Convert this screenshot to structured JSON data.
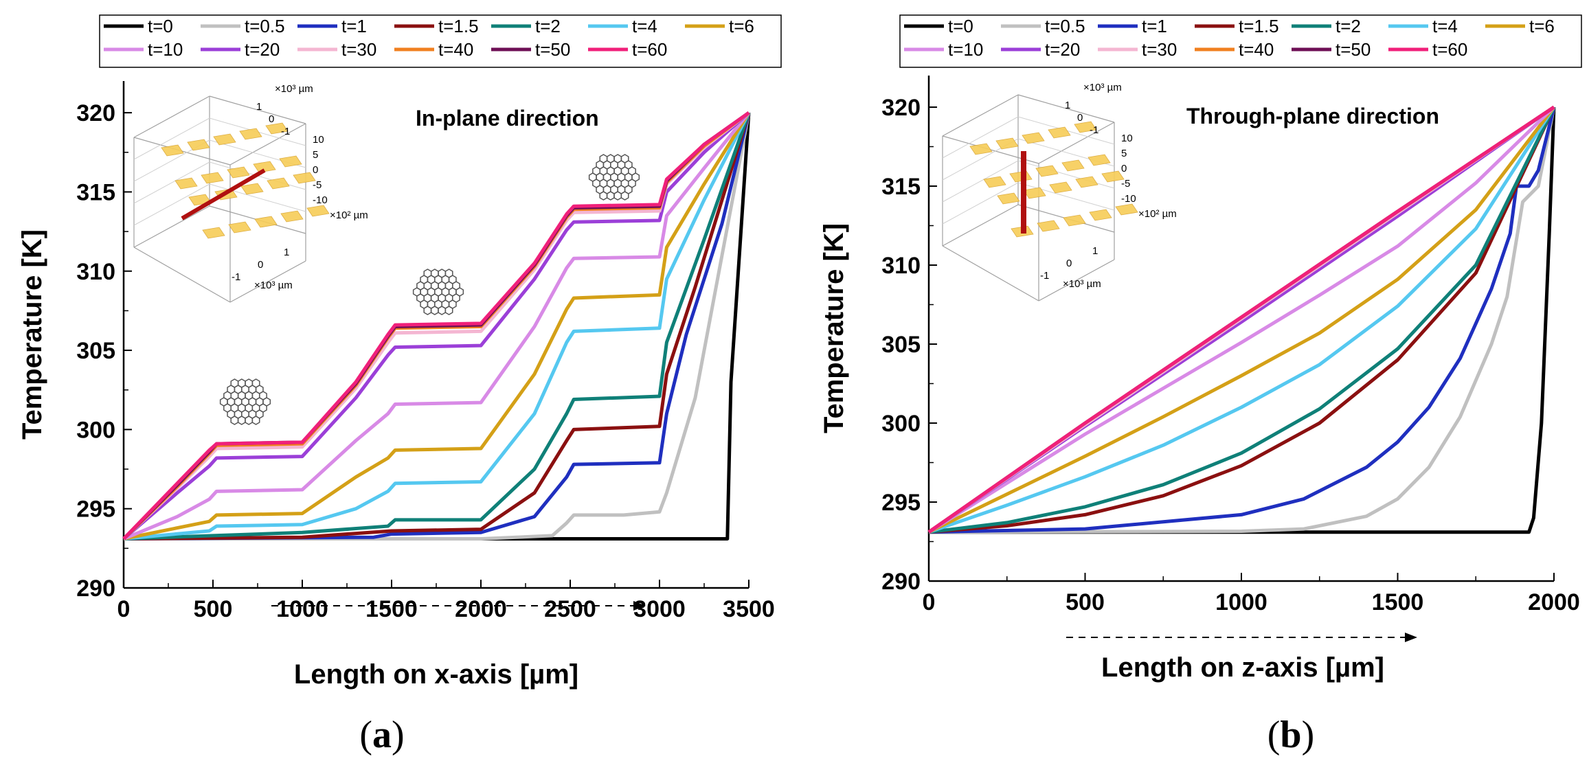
{
  "figure": {
    "captions": [
      {
        "open": "(",
        "letter": "a",
        "close": ")"
      },
      {
        "open": "(",
        "letter": "b",
        "close": ")"
      }
    ]
  },
  "chart_data": [
    {
      "type": "line",
      "panel": "a",
      "title": "In-plane direction",
      "xlabel": "Length on x-axis [µm]",
      "ylabel": "Temperature [K]",
      "xlim": [
        0,
        3500
      ],
      "ylim": [
        290,
        322
      ],
      "xticks": [
        0,
        500,
        1000,
        1500,
        2000,
        2500,
        3000,
        3500
      ],
      "yticks": [
        290,
        295,
        300,
        305,
        310,
        315,
        320
      ],
      "legend_position": "top",
      "inset": {
        "label_top": "×10³ µm",
        "label_z": "×10² µm",
        "label_bottom": "×10³ µm",
        "ticks_top": [
          "1",
          "0",
          "-1"
        ],
        "ticks_z": [
          "10",
          "5",
          "0",
          "-5",
          "-10"
        ],
        "ticks_bottom": [
          "1",
          "0",
          "-1"
        ],
        "line": "horizontal"
      },
      "series": [
        {
          "name": "t=0",
          "color": "#000000",
          "x": [
            0,
            3380,
            3400,
            3500
          ],
          "y": [
            293.1,
            293.1,
            303,
            320
          ]
        },
        {
          "name": "t=0.5",
          "color": "#c0c0c0",
          "x": [
            0,
            2000,
            2400,
            2480,
            2520,
            2800,
            3000,
            3040,
            3200,
            3500
          ],
          "y": [
            293.1,
            293.1,
            293.3,
            294.1,
            294.6,
            294.6,
            294.8,
            296,
            302,
            320
          ]
        },
        {
          "name": "t=1",
          "color": "#1f2fbf",
          "x": [
            0,
            1400,
            1500,
            2000,
            2300,
            2480,
            2520,
            3000,
            3040,
            3150,
            3350,
            3500
          ],
          "y": [
            293.1,
            293.2,
            293.4,
            293.5,
            294.5,
            297,
            297.8,
            297.9,
            301,
            306,
            313,
            320
          ]
        },
        {
          "name": "t=1.5",
          "color": "#8b1010",
          "x": [
            0,
            1000,
            1500,
            2000,
            2300,
            2480,
            2520,
            3000,
            3040,
            3200,
            3500
          ],
          "y": [
            293.1,
            293.2,
            293.6,
            293.7,
            296,
            299.3,
            300,
            300.2,
            303.5,
            309,
            320
          ]
        },
        {
          "name": "t=2",
          "color": "#0f8078",
          "x": [
            0,
            500,
            1000,
            1480,
            1520,
            2000,
            2300,
            2480,
            2520,
            3000,
            3040,
            3250,
            3500
          ],
          "y": [
            293.1,
            293.3,
            293.5,
            293.9,
            294.3,
            294.3,
            297.5,
            301,
            301.9,
            302.1,
            305.5,
            312,
            320
          ]
        },
        {
          "name": "t=4",
          "color": "#55c8f0",
          "x": [
            0,
            480,
            520,
            1000,
            1300,
            1480,
            1520,
            2000,
            2300,
            2480,
            2520,
            3000,
            3040,
            3250,
            3500
          ],
          "y": [
            293.1,
            293.6,
            293.9,
            294,
            295,
            296.1,
            296.6,
            296.7,
            301,
            305.5,
            306.2,
            306.4,
            309.5,
            314.5,
            320
          ]
        },
        {
          "name": "t=6",
          "color": "#d4a017",
          "x": [
            0,
            480,
            520,
            1000,
            1300,
            1480,
            1520,
            2000,
            2300,
            2480,
            2520,
            3000,
            3040,
            3250,
            3500
          ],
          "y": [
            293.1,
            294.2,
            294.6,
            294.7,
            297,
            298.2,
            298.7,
            298.8,
            303.5,
            307.6,
            308.3,
            308.5,
            311.5,
            315.5,
            320
          ]
        },
        {
          "name": "t=10",
          "color": "#d88ae6",
          "x": [
            0,
            300,
            480,
            520,
            1000,
            1300,
            1480,
            1520,
            2000,
            2300,
            2480,
            2520,
            3000,
            3040,
            3250,
            3500
          ],
          "y": [
            293.1,
            294.5,
            295.6,
            296.1,
            296.2,
            299.3,
            301,
            301.6,
            301.7,
            306.5,
            310.2,
            310.8,
            310.9,
            313.5,
            316.5,
            320
          ]
        },
        {
          "name": "t=20",
          "color": "#9b3fd8",
          "x": [
            0,
            300,
            480,
            520,
            1000,
            1300,
            1480,
            1520,
            2000,
            2300,
            2480,
            2520,
            3000,
            3040,
            3250,
            3500
          ],
          "y": [
            293.1,
            296,
            297.7,
            298.2,
            298.3,
            302,
            304.7,
            305.2,
            305.3,
            309.5,
            312.6,
            313.1,
            313.2,
            315,
            317.5,
            320
          ]
        },
        {
          "name": "t=30",
          "color": "#f4b6d2",
          "x": [
            0,
            300,
            480,
            520,
            1000,
            1300,
            1480,
            1520,
            2000,
            2300,
            2480,
            2520,
            3000,
            3040,
            3250,
            3500
          ],
          "y": [
            293.1,
            296.3,
            298.3,
            298.8,
            298.9,
            302.6,
            305.5,
            306.1,
            306.2,
            310.1,
            313.2,
            313.7,
            313.8,
            315.5,
            317.8,
            320
          ]
        },
        {
          "name": "t=40",
          "color": "#f08020",
          "x": [
            0,
            300,
            480,
            520,
            1000,
            1300,
            1480,
            1520,
            2000,
            2300,
            2480,
            2520,
            3000,
            3040,
            3250,
            3500
          ],
          "y": [
            293.1,
            296.4,
            298.5,
            299,
            299.1,
            302.8,
            305.8,
            306.4,
            306.5,
            310.3,
            313.4,
            313.9,
            314,
            315.6,
            317.9,
            320
          ]
        },
        {
          "name": "t=50",
          "color": "#6e0f55",
          "x": [
            0,
            300,
            480,
            520,
            1000,
            1300,
            1480,
            1520,
            2000,
            2300,
            2480,
            2520,
            3000,
            3040,
            3250,
            3500
          ],
          "y": [
            293.1,
            296.5,
            298.6,
            299.1,
            299.2,
            302.9,
            305.9,
            306.5,
            306.6,
            310.4,
            313.5,
            314,
            314.1,
            315.7,
            318,
            320
          ]
        },
        {
          "name": "t=60",
          "color": "#f0207a",
          "x": [
            0,
            300,
            480,
            520,
            1000,
            1300,
            1480,
            1520,
            2000,
            2300,
            2480,
            2520,
            3000,
            3040,
            3250,
            3500
          ],
          "y": [
            293.1,
            296.6,
            298.7,
            299.1,
            299.2,
            303,
            306,
            306.6,
            306.7,
            310.5,
            313.6,
            314.1,
            314.2,
            315.8,
            318,
            320
          ]
        }
      ]
    },
    {
      "type": "line",
      "panel": "b",
      "title": "Through-plane direction",
      "xlabel": "Length on z-axis [µm]",
      "ylabel": "Temperature [K]",
      "xlim": [
        0,
        2000
      ],
      "ylim": [
        290,
        322
      ],
      "xticks": [
        0,
        500,
        1000,
        1500,
        2000
      ],
      "yticks": [
        290,
        295,
        300,
        305,
        310,
        315,
        320
      ],
      "legend_position": "top",
      "inset": {
        "label_top": "×10³ µm",
        "label_z": "×10² µm",
        "label_bottom": "×10³ µm",
        "ticks_top": [
          "1",
          "0",
          "-1"
        ],
        "ticks_z": [
          "10",
          "5",
          "0",
          "-5",
          "-10"
        ],
        "ticks_bottom": [
          "1",
          "0",
          "-1"
        ],
        "line": "vertical"
      },
      "series": [
        {
          "name": "t=0",
          "color": "#000000",
          "x": [
            0,
            1920,
            1935,
            1960,
            1985,
            2000
          ],
          "y": [
            293.1,
            293.1,
            294,
            300,
            312,
            320
          ]
        },
        {
          "name": "t=0.5",
          "color": "#c0c0c0",
          "x": [
            0,
            1000,
            1200,
            1400,
            1500,
            1600,
            1700,
            1800,
            1850,
            1900,
            1950,
            2000
          ],
          "y": [
            293.1,
            293.15,
            293.3,
            294.1,
            295.2,
            297.2,
            300.4,
            305,
            308,
            314,
            315,
            320
          ]
        },
        {
          "name": "t=1",
          "color": "#1f2fbf",
          "x": [
            0,
            500,
            1000,
            1200,
            1400,
            1500,
            1600,
            1700,
            1800,
            1860,
            1880,
            1920,
            1950,
            2000
          ],
          "y": [
            293.1,
            293.3,
            294.2,
            295.2,
            297.2,
            298.8,
            301,
            304.1,
            308.5,
            312,
            315,
            315,
            316,
            320
          ]
        },
        {
          "name": "t=1.5",
          "color": "#8b1010",
          "x": [
            0,
            250,
            500,
            750,
            1000,
            1250,
            1500,
            1750,
            2000
          ],
          "y": [
            293.1,
            293.5,
            294.2,
            295.4,
            297.3,
            300,
            304,
            309.5,
            320
          ]
        },
        {
          "name": "t=2",
          "color": "#0f8078",
          "x": [
            0,
            250,
            500,
            750,
            1000,
            1250,
            1500,
            1750,
            2000
          ],
          "y": [
            293.1,
            293.7,
            294.7,
            296.1,
            298.1,
            300.9,
            304.7,
            310,
            320
          ]
        },
        {
          "name": "t=4",
          "color": "#55c8f0",
          "x": [
            0,
            250,
            500,
            750,
            1000,
            1250,
            1500,
            1750,
            2000
          ],
          "y": [
            293.1,
            294.8,
            296.6,
            298.6,
            301,
            303.7,
            307.4,
            312.3,
            320
          ]
        },
        {
          "name": "t=6",
          "color": "#d4a017",
          "x": [
            0,
            250,
            500,
            750,
            1000,
            1250,
            1500,
            1750,
            2000
          ],
          "y": [
            293.1,
            295.5,
            297.9,
            300.4,
            303,
            305.7,
            309.1,
            313.5,
            320
          ]
        },
        {
          "name": "t=10",
          "color": "#d88ae6",
          "x": [
            0,
            250,
            500,
            750,
            1000,
            1250,
            1500,
            1750,
            2000
          ],
          "y": [
            293.1,
            296.2,
            299.3,
            302.2,
            305.1,
            308.1,
            311.2,
            315.2,
            320
          ]
        },
        {
          "name": "t=20",
          "color": "#9b3fd8",
          "x": [
            0,
            500,
            1000,
            1500,
            2000
          ],
          "y": [
            293.1,
            299.8,
            306.4,
            313.1,
            320
          ]
        },
        {
          "name": "t=30",
          "color": "#f4b6d2",
          "x": [
            0,
            500,
            1000,
            1500,
            2000
          ],
          "y": [
            293.1,
            299.9,
            306.6,
            313.3,
            320
          ]
        },
        {
          "name": "t=40",
          "color": "#f08020",
          "x": [
            0,
            500,
            1000,
            1500,
            2000
          ],
          "y": [
            293.1,
            300,
            306.7,
            313.4,
            320
          ]
        },
        {
          "name": "t=50",
          "color": "#6e0f55",
          "x": [
            0,
            500,
            1000,
            1500,
            2000
          ],
          "y": [
            293.1,
            300,
            306.7,
            313.4,
            320
          ]
        },
        {
          "name": "t=60",
          "color": "#f0207a",
          "x": [
            0,
            500,
            1000,
            1500,
            2000
          ],
          "y": [
            293.1,
            300,
            306.7,
            313.4,
            320
          ]
        }
      ]
    }
  ]
}
